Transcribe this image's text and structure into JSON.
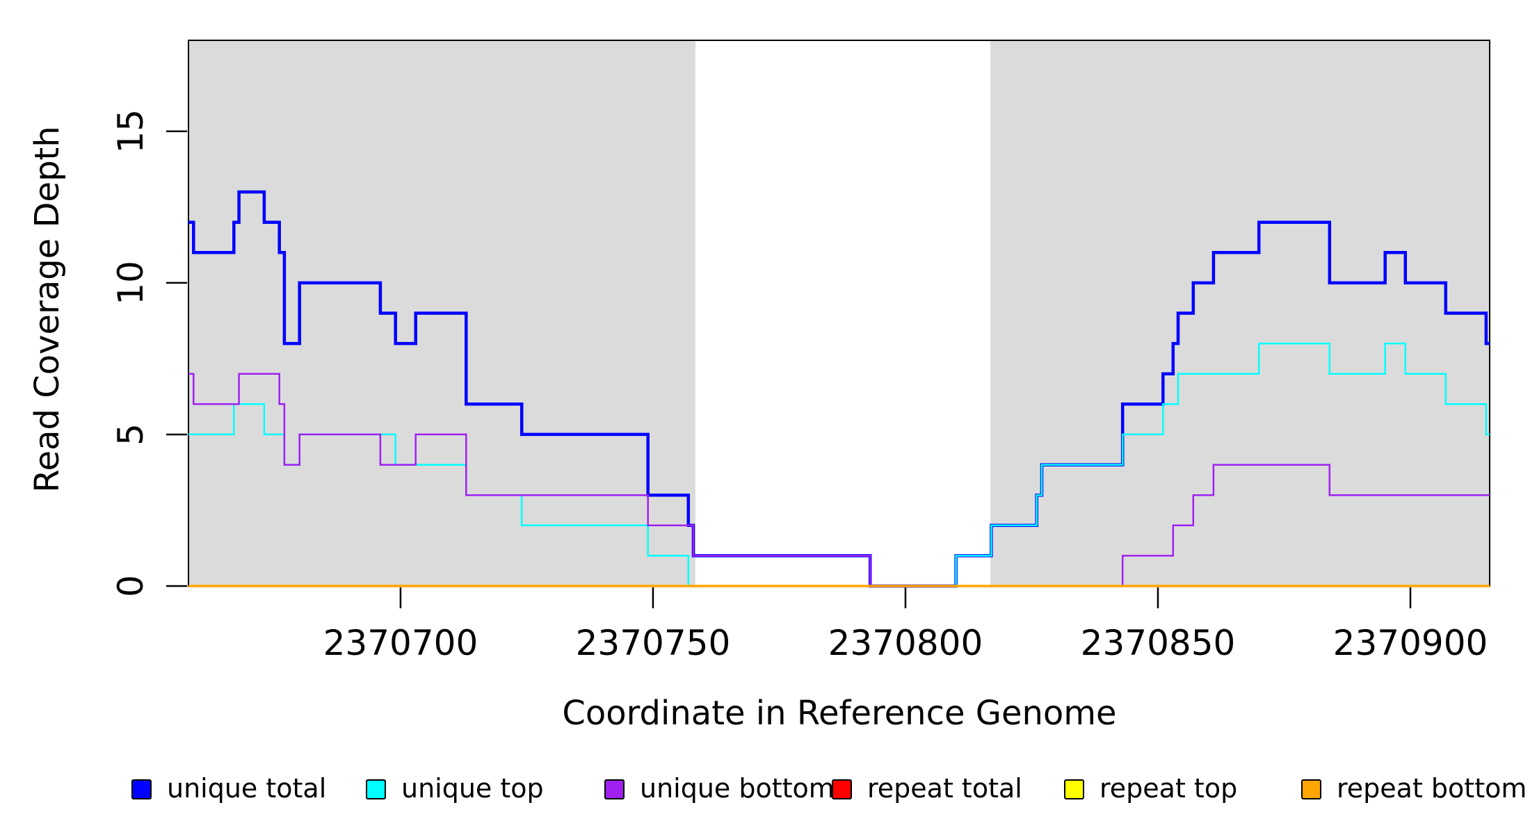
{
  "chart_data": {
    "type": "line",
    "subtype": "step",
    "title": "",
    "xlabel": "Coordinate in Reference Genome",
    "ylabel": "Read Coverage Depth",
    "x_ticks": [
      2370700,
      2370750,
      2370800,
      2370850,
      2370900
    ],
    "y_ticks": [
      0,
      5,
      10,
      15
    ],
    "x_range": [
      2370658,
      2370915.7
    ],
    "y_range": [
      0,
      18.0
    ],
    "grid": false,
    "background_color": "#ffffff",
    "panel_color": "#DBDBDB",
    "axis_color": "#000000",
    "shaded_regions": [
      {
        "name": "left-gray-panel",
        "x0": 2370658,
        "x1": 2370758.4
      },
      {
        "name": "right-gray-panel",
        "x0": 2370816.8,
        "x1": 2370915.7
      }
    ],
    "series": [
      {
        "name": "unique total",
        "color": "#0000FF",
        "line_width": 4.5,
        "end_x": 2370915.7,
        "steps": [
          [
            2370658,
            12
          ],
          [
            2370659,
            11
          ],
          [
            2370667,
            12
          ],
          [
            2370668,
            13
          ],
          [
            2370673,
            12
          ],
          [
            2370676,
            11
          ],
          [
            2370677,
            8
          ],
          [
            2370680,
            10
          ],
          [
            2370696,
            9
          ],
          [
            2370699,
            8
          ],
          [
            2370703,
            9
          ],
          [
            2370713,
            6
          ],
          [
            2370724,
            5
          ],
          [
            2370749,
            3
          ],
          [
            2370757,
            2
          ],
          [
            2370758,
            1
          ],
          [
            2370793,
            0
          ],
          [
            2370810,
            1
          ],
          [
            2370817,
            2
          ],
          [
            2370826,
            3
          ],
          [
            2370827,
            4
          ],
          [
            2370843,
            6
          ],
          [
            2370851,
            7
          ],
          [
            2370853,
            8
          ],
          [
            2370854,
            9
          ],
          [
            2370857,
            10
          ],
          [
            2370861,
            11
          ],
          [
            2370870,
            12
          ],
          [
            2370884,
            10
          ],
          [
            2370895,
            11
          ],
          [
            2370899,
            10
          ],
          [
            2370907,
            9
          ],
          [
            2370915,
            8
          ]
        ]
      },
      {
        "name": "unique top",
        "color": "#00FFFF",
        "line_width": 2.5,
        "end_x": 2370915.7,
        "steps": [
          [
            2370658,
            5
          ],
          [
            2370667,
            6
          ],
          [
            2370673,
            5
          ],
          [
            2370677,
            4
          ],
          [
            2370680,
            5
          ],
          [
            2370699,
            4
          ],
          [
            2370713,
            3
          ],
          [
            2370724,
            2
          ],
          [
            2370749,
            1
          ],
          [
            2370757,
            0
          ],
          [
            2370810,
            1
          ],
          [
            2370817,
            2
          ],
          [
            2370826,
            3
          ],
          [
            2370827,
            4
          ],
          [
            2370843,
            5
          ],
          [
            2370851,
            6
          ],
          [
            2370854,
            7
          ],
          [
            2370870,
            8
          ],
          [
            2370884,
            7
          ],
          [
            2370895,
            8
          ],
          [
            2370899,
            7
          ],
          [
            2370907,
            6
          ],
          [
            2370915,
            5
          ]
        ]
      },
      {
        "name": "unique bottom",
        "color": "#A020F0",
        "line_width": 2.5,
        "end_x": 2370915.7,
        "steps": [
          [
            2370658,
            7
          ],
          [
            2370659,
            6
          ],
          [
            2370668,
            7
          ],
          [
            2370676,
            6
          ],
          [
            2370677,
            4
          ],
          [
            2370680,
            5
          ],
          [
            2370696,
            4
          ],
          [
            2370703,
            5
          ],
          [
            2370713,
            3
          ],
          [
            2370749,
            2
          ],
          [
            2370758,
            1
          ],
          [
            2370793,
            0
          ],
          [
            2370843,
            1
          ],
          [
            2370853,
            2
          ],
          [
            2370857,
            3
          ],
          [
            2370861,
            4
          ],
          [
            2370884,
            3
          ]
        ]
      },
      {
        "name": "repeat total",
        "color": "#FF0000",
        "line_width": 2,
        "end_x": 2370915.7,
        "steps": [
          [
            2370658,
            0
          ]
        ]
      },
      {
        "name": "repeat top",
        "color": "#FFFF00",
        "line_width": 2,
        "end_x": 2370915.7,
        "steps": [
          [
            2370658,
            0
          ]
        ]
      },
      {
        "name": "repeat bottom",
        "color": "#FFA500",
        "line_width": 3.5,
        "end_x": 2370915.7,
        "steps": [
          [
            2370658,
            0
          ]
        ]
      }
    ],
    "legend": [
      {
        "label": "unique total",
        "color": "#0000FF"
      },
      {
        "label": "unique top",
        "color": "#00FFFF"
      },
      {
        "label": "unique bottom",
        "color": "#A020F0"
      },
      {
        "label": "repeat total",
        "color": "#FF0000"
      },
      {
        "label": "repeat top",
        "color": "#FFFF00"
      },
      {
        "label": "repeat bottom",
        "color": "#FFA500"
      }
    ],
    "legend_position": "bottom"
  }
}
